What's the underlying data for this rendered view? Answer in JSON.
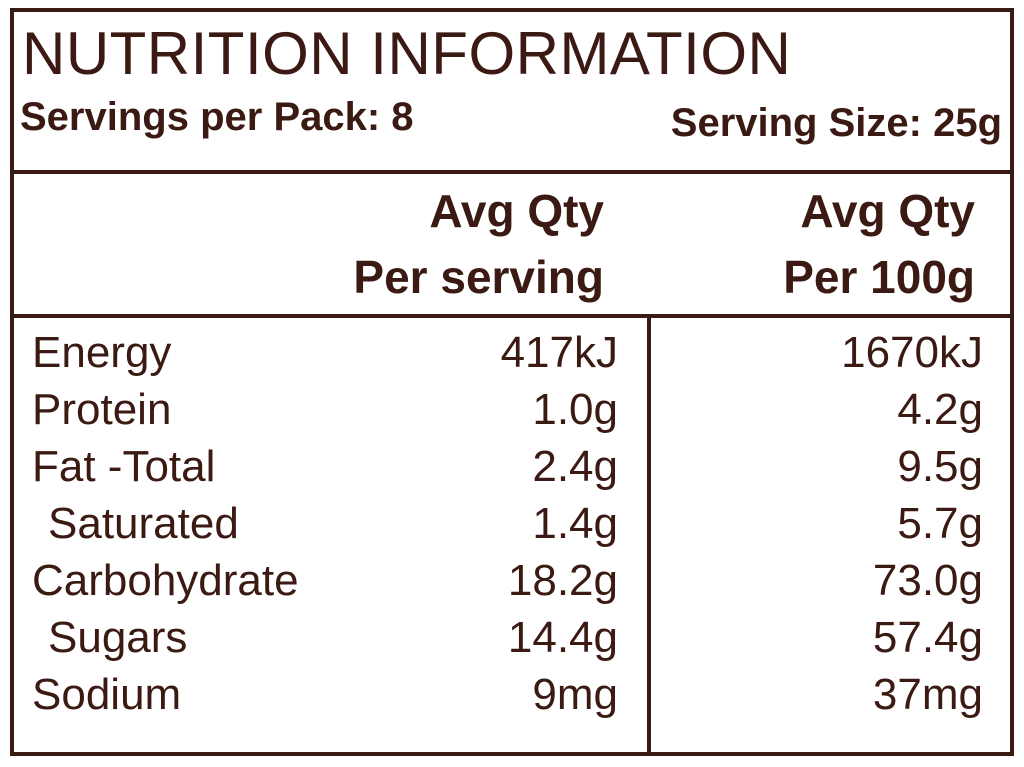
{
  "header": {
    "title": "NUTRITION INFORMATION",
    "servings_per_pack": "Servings per Pack: 8",
    "serving_size": "Serving Size: 25g"
  },
  "columns": {
    "serving_line1": "Avg Qty",
    "serving_line2": "Per serving",
    "per100_line1": "Avg Qty",
    "per100_line2": "Per 100g"
  },
  "rows": [
    {
      "label": "Energy",
      "per_serving": "417kJ",
      "per_100g": "1670kJ"
    },
    {
      "label": "Protein",
      "per_serving": "1.0g",
      "per_100g": "4.2g"
    },
    {
      "label": "Fat -Total",
      "per_serving": "2.4g",
      "per_100g": "9.5g"
    },
    {
      "label": "Saturated",
      "per_serving": "1.4g",
      "per_100g": "5.7g"
    },
    {
      "label": "Carbohydrate",
      "per_serving": "18.2g",
      "per_100g": "73.0g"
    },
    {
      "label": "Sugars",
      "per_serving": "14.4g",
      "per_100g": "57.4g"
    },
    {
      "label": "Sodium",
      "per_serving": "9mg",
      "per_100g": "37mg"
    }
  ],
  "colors": {
    "ink": "#3a1a12",
    "background": "#ffffff"
  }
}
